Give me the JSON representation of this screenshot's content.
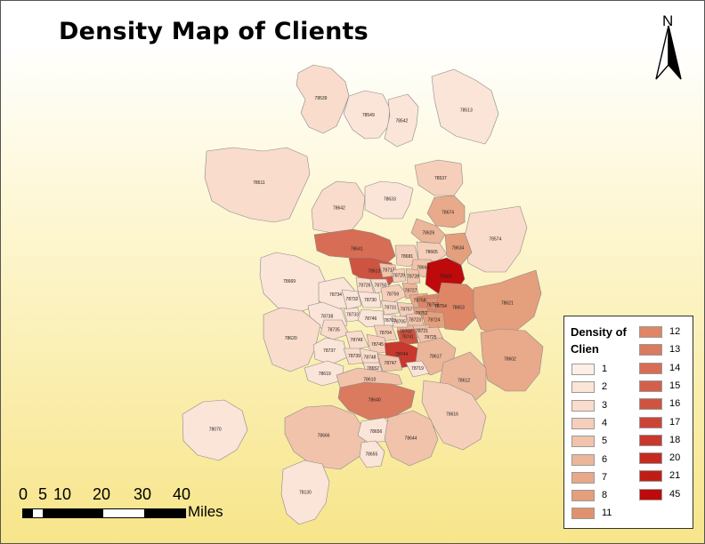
{
  "title": "Density Map of Clients",
  "north_arrow": {
    "label": "N"
  },
  "scale_bar": {
    "ticks": [
      "0",
      "5",
      "10",
      "20",
      "30",
      "40"
    ],
    "unit": "Miles"
  },
  "legend": {
    "title": "Density of Clien",
    "classes": [
      {
        "label": "1",
        "color": "#fdeee6"
      },
      {
        "label": "2",
        "color": "#fbe4d8"
      },
      {
        "label": "3",
        "color": "#f9dccb"
      },
      {
        "label": "4",
        "color": "#f5cfba"
      },
      {
        "label": "5",
        "color": "#f1c3aa"
      },
      {
        "label": "6",
        "color": "#ecb69a"
      },
      {
        "label": "7",
        "color": "#e8aa8a"
      },
      {
        "label": "8",
        "color": "#e49f7c"
      },
      {
        "label": "11",
        "color": "#e0926e"
      },
      {
        "label": "12",
        "color": "#de8666"
      },
      {
        "label": "13",
        "color": "#da7a5e"
      },
      {
        "label": "14",
        "color": "#d66d54"
      },
      {
        "label": "15",
        "color": "#d2604a"
      },
      {
        "label": "16",
        "color": "#ce5340"
      },
      {
        "label": "17",
        "color": "#cb4536"
      },
      {
        "label": "18",
        "color": "#c8382c"
      },
      {
        "label": "20",
        "color": "#c52a20"
      },
      {
        "label": "21",
        "color": "#c21c16"
      },
      {
        "label": "45",
        "color": "#be0a0a"
      }
    ]
  },
  "zips": [
    {
      "label": "78539",
      "density": "3"
    },
    {
      "label": "78549",
      "density": "2"
    },
    {
      "label": "78542",
      "density": "2"
    },
    {
      "label": "78513",
      "density": "2"
    },
    {
      "label": "78611",
      "density": "3"
    },
    {
      "label": "78642",
      "density": "3"
    },
    {
      "label": "78633",
      "density": "2"
    },
    {
      "label": "78537",
      "density": "4"
    },
    {
      "label": "78574",
      "density": "3"
    },
    {
      "label": "78674",
      "density": "7"
    },
    {
      "label": "78626",
      "density": "6"
    },
    {
      "label": "78641",
      "density": "14"
    },
    {
      "label": "78665",
      "density": "4"
    },
    {
      "label": "78634",
      "density": "8"
    },
    {
      "label": "78681",
      "density": "4"
    },
    {
      "label": "78613",
      "density": "16"
    },
    {
      "label": "78717",
      "density": "5"
    },
    {
      "label": "78664",
      "density": "5"
    },
    {
      "label": "78660",
      "density": "45"
    },
    {
      "label": "78669",
      "density": "2"
    },
    {
      "label": "78729",
      "density": "4"
    },
    {
      "label": "78728",
      "density": "5"
    },
    {
      "label": "78750",
      "density": "3"
    },
    {
      "label": "78726",
      "density": "3"
    },
    {
      "label": "78759",
      "density": "4"
    },
    {
      "label": "78727",
      "density": "6"
    },
    {
      "label": "78758",
      "density": "7"
    },
    {
      "label": "78753",
      "density": "12"
    },
    {
      "label": "78734",
      "density": "2"
    },
    {
      "label": "78732",
      "density": "2"
    },
    {
      "label": "78730",
      "density": "2"
    },
    {
      "label": "78731",
      "density": "3"
    },
    {
      "label": "78757",
      "density": "4"
    },
    {
      "label": "78752",
      "density": "8"
    },
    {
      "label": "78754",
      "density": "11"
    },
    {
      "label": "78653",
      "density": "12"
    },
    {
      "label": "78621",
      "density": "8"
    },
    {
      "label": "78733",
      "density": "2"
    },
    {
      "label": "78746",
      "density": "2"
    },
    {
      "label": "78703",
      "density": "2"
    },
    {
      "label": "78723",
      "density": "5"
    },
    {
      "label": "78724",
      "density": "8"
    },
    {
      "label": "78721",
      "density": "5"
    },
    {
      "label": "78702",
      "density": "6"
    },
    {
      "label": "78738",
      "density": "2"
    },
    {
      "label": "78735",
      "density": "3"
    },
    {
      "label": "78705",
      "density": "3"
    },
    {
      "label": "78704",
      "density": "4"
    },
    {
      "label": "78741",
      "density": "16"
    },
    {
      "label": "78725",
      "density": "5"
    },
    {
      "label": "78620",
      "density": "3"
    },
    {
      "label": "78737",
      "density": "2"
    },
    {
      "label": "78749",
      "density": "3"
    },
    {
      "label": "78745",
      "density": "4"
    },
    {
      "label": "78744",
      "density": "18"
    },
    {
      "label": "78617",
      "density": "6"
    },
    {
      "label": "78602",
      "density": "7"
    },
    {
      "label": "78739",
      "density": "3"
    },
    {
      "label": "78748",
      "density": "3"
    },
    {
      "label": "78747",
      "density": "5"
    },
    {
      "label": "78619",
      "density": "2"
    },
    {
      "label": "78652",
      "density": "3"
    },
    {
      "label": "78719",
      "density": "2"
    },
    {
      "label": "78612",
      "density": "6"
    },
    {
      "label": "78610",
      "density": "5"
    },
    {
      "label": "78640",
      "density": "13"
    },
    {
      "label": "78616",
      "density": "4"
    },
    {
      "label": "78070",
      "density": "2"
    },
    {
      "label": "78666",
      "density": "5"
    },
    {
      "label": "78656",
      "density": "2"
    },
    {
      "label": "78644",
      "density": "5"
    },
    {
      "label": "78655",
      "density": "2"
    },
    {
      "label": "78130",
      "density": "2"
    }
  ]
}
